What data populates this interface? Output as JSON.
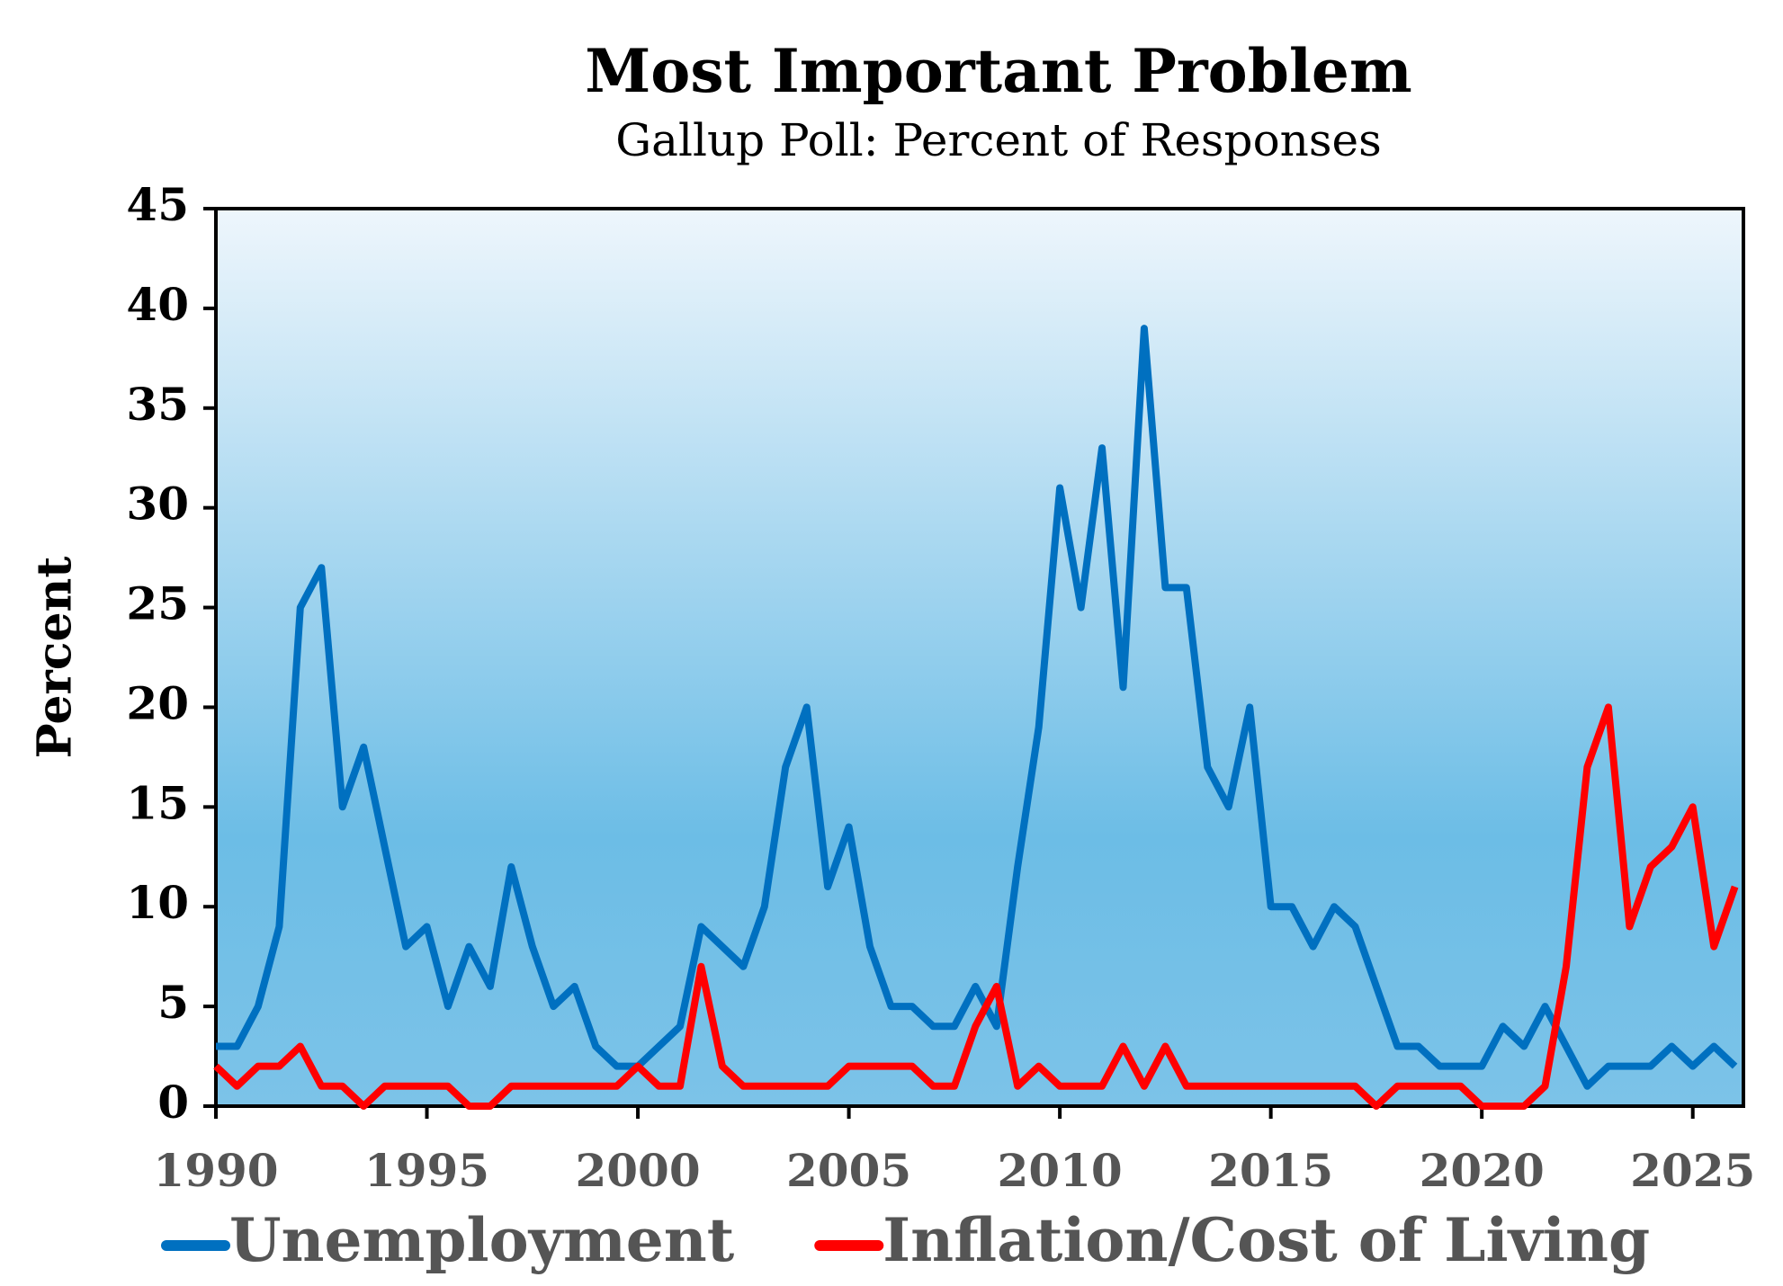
{
  "chart_data": {
    "type": "line",
    "title": "Most Important Problem",
    "subtitle": "Gallup Poll: Percent of Responses",
    "y_label": "Percent",
    "x": [
      1990,
      1990.5,
      1991,
      1991.5,
      1992,
      1992.5,
      1993,
      1993.5,
      1994,
      1994.5,
      1995,
      1995.5,
      1996,
      1996.5,
      1997,
      1997.5,
      1998,
      1998.5,
      1999,
      1999.5,
      2000,
      2000.5,
      2001,
      2001.5,
      2002,
      2002.5,
      2003,
      2003.5,
      2004,
      2004.5,
      2005,
      2005.5,
      2006,
      2006.5,
      2007,
      2007.5,
      2008,
      2008.5,
      2009,
      2009.5,
      2010,
      2010.5,
      2011,
      2011.5,
      2012,
      2012.5,
      2013,
      2013.5,
      2014,
      2014.5,
      2015,
      2015.5,
      2016,
      2016.5,
      2017,
      2017.5,
      2018,
      2018.5,
      2019,
      2019.5,
      2020,
      2020.5,
      2021,
      2021.5,
      2022,
      2022.5,
      2023,
      2023.5,
      2024,
      2024.5,
      2025,
      2025.5,
      2026
    ],
    "series": [
      {
        "name": "Unemployment",
        "color": "#0070c0",
        "values": [
          3,
          3,
          5,
          9,
          25,
          27,
          15,
          18,
          13,
          8,
          9,
          5,
          8,
          6,
          12,
          8,
          5,
          6,
          3,
          2,
          2,
          3,
          4,
          9,
          8,
          7,
          10,
          17,
          20,
          11,
          14,
          8,
          5,
          5,
          4,
          4,
          6,
          4,
          12,
          19,
          31,
          25,
          33,
          21,
          39,
          26,
          26,
          17,
          15,
          20,
          10,
          10,
          8,
          10,
          9,
          6,
          3,
          3,
          2,
          2,
          2,
          4,
          3,
          5,
          3,
          1,
          2,
          2,
          2,
          3,
          2,
          3,
          2
        ]
      },
      {
        "name": "Inflation/Cost of Living",
        "color": "#ff0000",
        "values": [
          2,
          1,
          2,
          2,
          3,
          1,
          1,
          0,
          1,
          1,
          1,
          1,
          0,
          0,
          1,
          1,
          1,
          1,
          1,
          1,
          2,
          1,
          1,
          7,
          2,
          1,
          1,
          1,
          1,
          1,
          2,
          2,
          2,
          2,
          1,
          1,
          4,
          6,
          1,
          2,
          1,
          1,
          1,
          3,
          1,
          3,
          1,
          1,
          1,
          1,
          1,
          1,
          1,
          1,
          1,
          0,
          1,
          1,
          1,
          1,
          0,
          0,
          0,
          1,
          7,
          17,
          20,
          9,
          12,
          13,
          15,
          8,
          11
        ]
      }
    ],
    "xlim": [
      1990,
      2026.2
    ],
    "xticks": [
      1990,
      1995,
      2000,
      2005,
      2010,
      2015,
      2020,
      2025
    ],
    "ylim": [
      0,
      45
    ],
    "yticks": [
      0,
      5,
      10,
      15,
      20,
      25,
      30,
      35,
      40,
      45
    ],
    "legend": "bottom"
  }
}
